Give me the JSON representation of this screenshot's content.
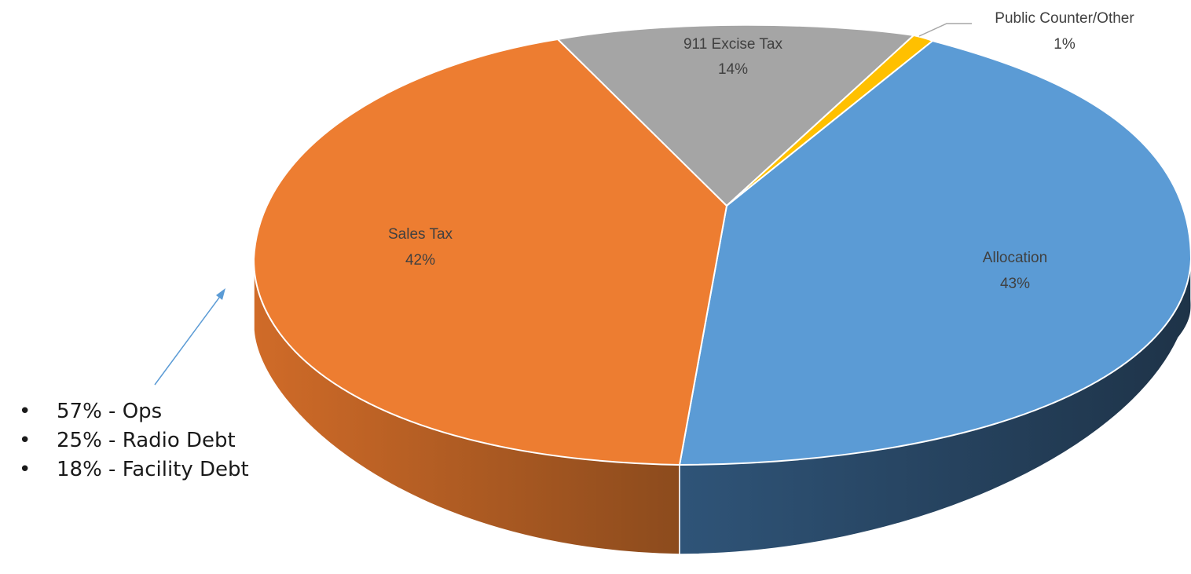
{
  "chart_data": {
    "type": "pie",
    "style": "3d-exploded-perspective",
    "categories": [
      "Allocation",
      "Sales Tax",
      "911 Excise Tax",
      "Public Counter/Other"
    ],
    "values": [
      43,
      42,
      14,
      1
    ],
    "labels": [
      "43%",
      "42%",
      "14%",
      "1%"
    ],
    "colors": [
      "#5B9BD5",
      "#ED7D31",
      "#A5A5A5",
      "#FFC000"
    ],
    "side_colors": {
      "Allocation": [
        "#2C4A6B",
        "#1F3447"
      ],
      "Sales Tax": [
        "#C86424",
        "#8A4A1C"
      ]
    },
    "title": "",
    "legend": "none",
    "annotations": [
      {
        "text": "57% - Ops",
        "bullet": "•"
      },
      {
        "text": "25% - Radio Debt",
        "bullet": "•"
      },
      {
        "text": "18% - Facility Debt",
        "bullet": "•"
      }
    ],
    "arrow_color": "#5B9BD5"
  }
}
